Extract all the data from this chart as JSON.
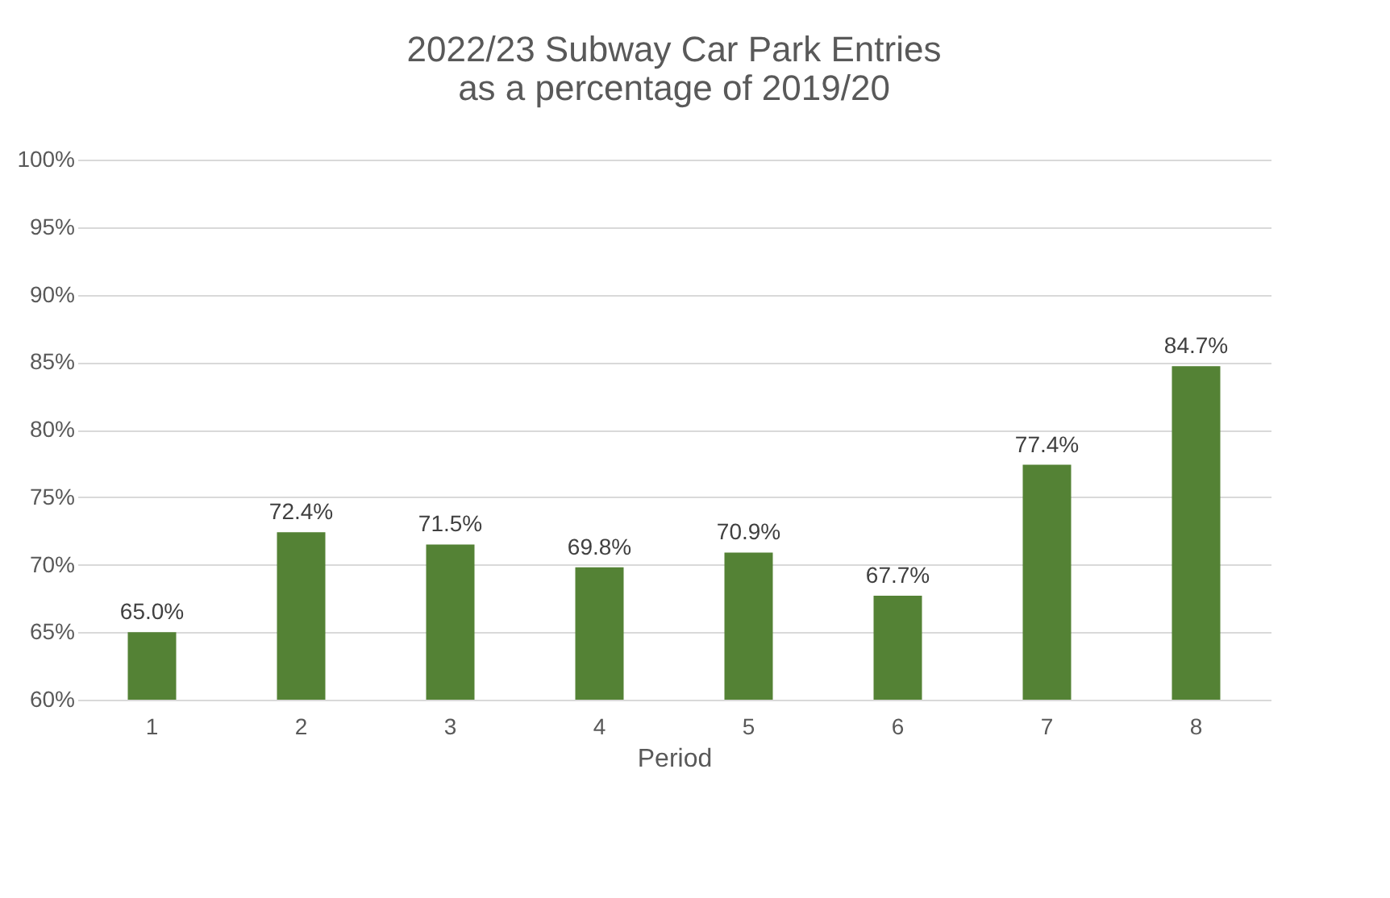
{
  "chart_data": {
    "type": "bar",
    "title": [
      "2022/23 Subway Car Park Entries",
      "as a percentage of 2019/20"
    ],
    "xlabel": "Period",
    "categories": [
      "1",
      "2",
      "3",
      "4",
      "5",
      "6",
      "7",
      "8"
    ],
    "values": [
      65.0,
      72.4,
      71.5,
      69.8,
      70.9,
      67.7,
      77.4,
      84.7
    ],
    "value_labels": [
      "65.0%",
      "72.4%",
      "71.5%",
      "69.8%",
      "70.9%",
      "67.7%",
      "77.4%",
      "84.7%"
    ],
    "color": "#548235",
    "ylim": [
      60,
      100
    ],
    "yticks": [
      {
        "value": 60,
        "label": "60%"
      },
      {
        "value": 65,
        "label": "65%"
      },
      {
        "value": 70,
        "label": "70%"
      },
      {
        "value": 75,
        "label": "75%"
      },
      {
        "value": 80,
        "label": "80%"
      },
      {
        "value": 85,
        "label": "85%"
      },
      {
        "value": 90,
        "label": "90%"
      },
      {
        "value": 95,
        "label": "95%"
      },
      {
        "value": 100,
        "label": "100%"
      }
    ],
    "grid": "y"
  }
}
